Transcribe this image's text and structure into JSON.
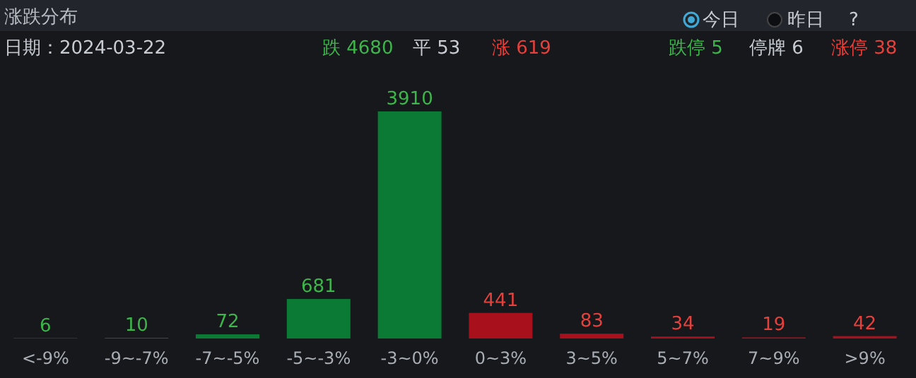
{
  "chart_data": {
    "type": "bar",
    "title": "涨跌分布",
    "annotations": [
      "日期：2024-03-22",
      "跌 4680",
      "平 53",
      "涨 619",
      "跌停 5",
      "停牌 6",
      "涨停 38",
      "今日",
      "昨日",
      "?"
    ],
    "categories": [
      "<-9%",
      "-9~-7%",
      "-7~-5%",
      "-5~-3%",
      "-3~0%",
      "0~3%",
      "3~5%",
      "5~7%",
      "7~9%",
      ">9%"
    ],
    "values": [
      6,
      10,
      72,
      681,
      3910,
      441,
      83,
      34,
      19,
      42
    ],
    "colors": [
      "#0b7a34",
      "#0b7a34",
      "#0b7a34",
      "#0b7a34",
      "#0b7a34",
      "#a8101c",
      "#a8101c",
      "#a8101c",
      "#a8101c",
      "#a8101c"
    ],
    "data_labels": true
  }
}
